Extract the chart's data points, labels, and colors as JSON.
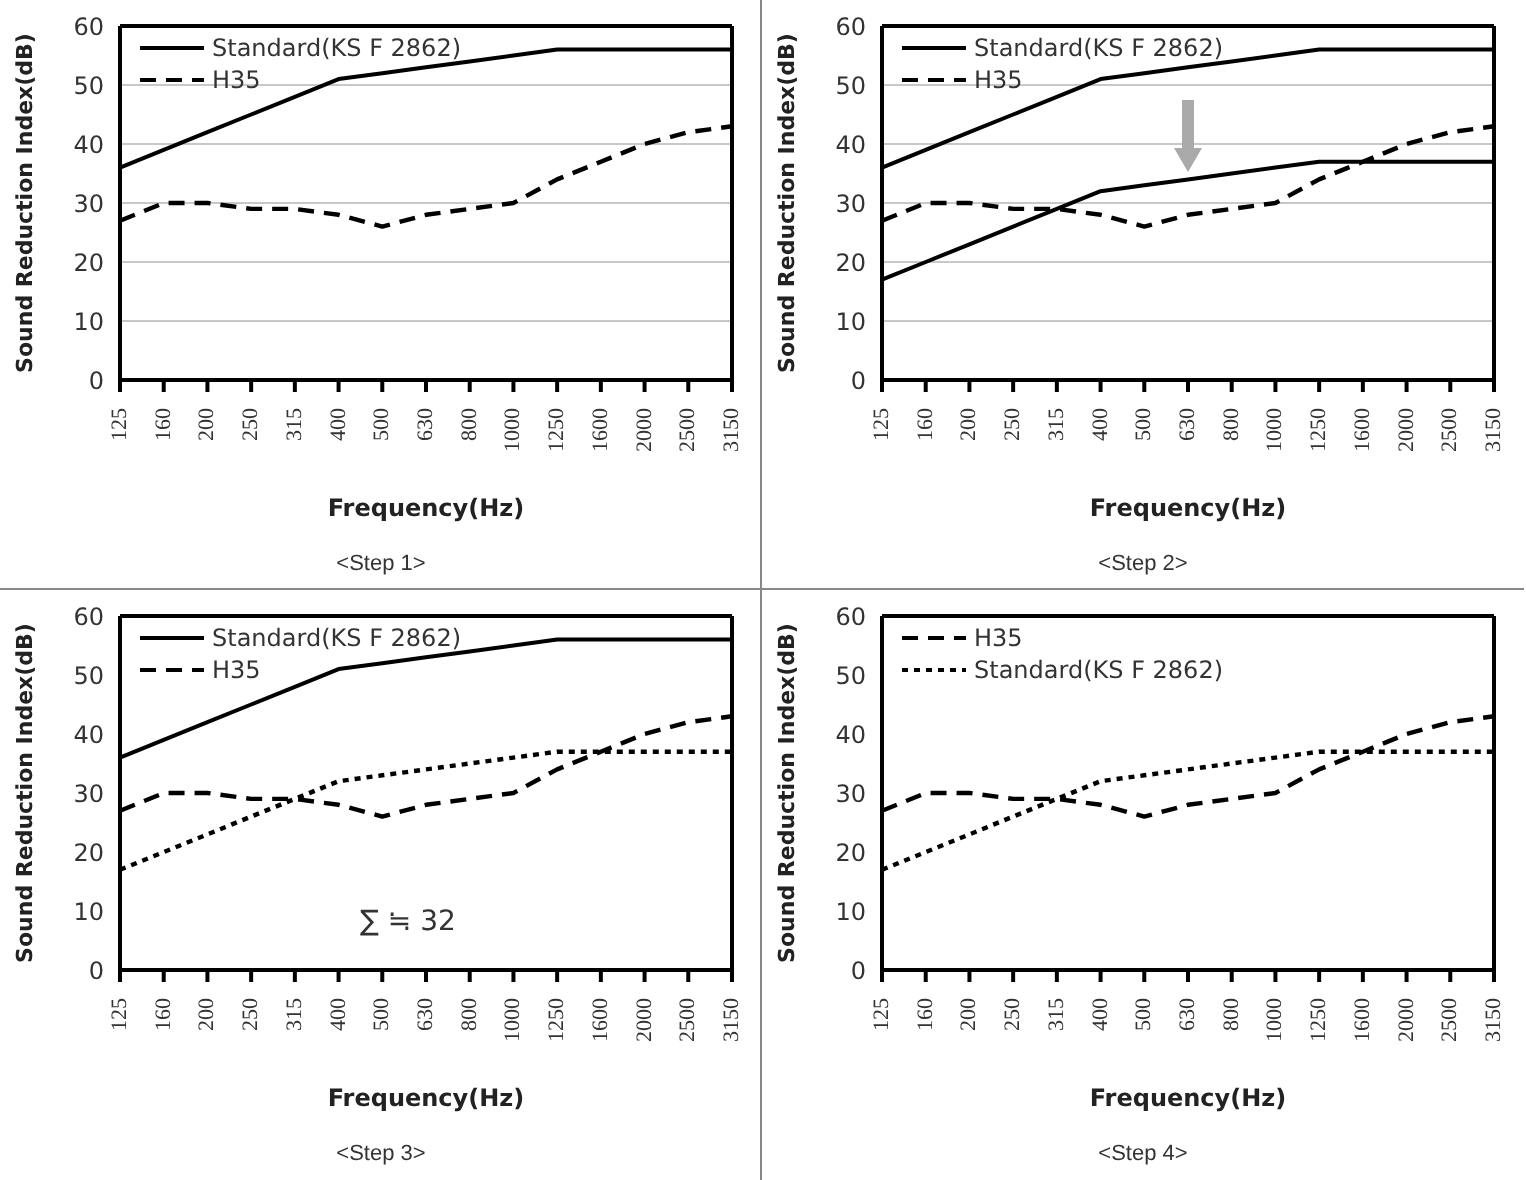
{
  "chart_data": [
    {
      "type": "line",
      "title": "<Step 1>",
      "xlabel": "Frequency(Hz)",
      "ylabel": "Sound Reduction Index(dB)",
      "categories": [
        "125",
        "160",
        "200",
        "250",
        "315",
        "400",
        "500",
        "630",
        "800",
        "1000",
        "1250",
        "1600",
        "2000",
        "2500",
        "3150"
      ],
      "ylim": [
        0,
        60
      ],
      "yticks": [
        0,
        10,
        20,
        30,
        40,
        50,
        60
      ],
      "grid": "y",
      "legend": "top left",
      "marker": "none",
      "series": [
        {
          "name": "Standard(KS F 2862)",
          "color": "#000000",
          "line_style": "solid",
          "values": [
            36,
            39,
            42,
            45,
            48,
            51,
            52,
            53,
            54,
            55,
            56,
            56,
            56,
            56,
            56
          ]
        },
        {
          "name": "H35",
          "color": "#000000",
          "line_style": "dashed",
          "values": [
            27,
            30,
            30,
            29,
            29,
            28,
            26,
            28,
            29,
            30,
            34,
            37,
            40,
            42,
            43
          ]
        }
      ]
    },
    {
      "type": "line",
      "title": "<Step 2>",
      "xlabel": "Frequency(Hz)",
      "ylabel": "Sound Reduction Index(dB)",
      "categories": [
        "125",
        "160",
        "200",
        "250",
        "315",
        "400",
        "500",
        "630",
        "800",
        "1000",
        "1250",
        "1600",
        "2000",
        "2500",
        "3150"
      ],
      "ylim": [
        0,
        60
      ],
      "yticks": [
        0,
        10,
        20,
        30,
        40,
        50,
        60
      ],
      "grid": "y",
      "legend": "top left",
      "marker": "none",
      "series": [
        {
          "name": "Standard(KS F 2862)",
          "color": "#000000",
          "line_style": "solid",
          "values": [
            36,
            39,
            42,
            45,
            48,
            51,
            52,
            53,
            54,
            55,
            56,
            56,
            56,
            56,
            56
          ]
        },
        {
          "name": "H35",
          "color": "#000000",
          "line_style": "dashed",
          "values": [
            27,
            30,
            30,
            29,
            29,
            28,
            26,
            28,
            29,
            30,
            34,
            37,
            40,
            42,
            43
          ]
        },
        {
          "color": "#000000",
          "line_style": "solid",
          "values": [
            17,
            20,
            23,
            26,
            29,
            32,
            33,
            34,
            35,
            36,
            37,
            37,
            37,
            37,
            37
          ]
        }
      ]
    },
    {
      "type": "line",
      "title": "<Step 3>",
      "xlabel": "Frequency(Hz)",
      "ylabel": "Sound Reduction Index(dB)",
      "categories": [
        "125",
        "160",
        "200",
        "250",
        "315",
        "400",
        "500",
        "630",
        "800",
        "1000",
        "1250",
        "1600",
        "2000",
        "2500",
        "3150"
      ],
      "ylim": [
        0,
        60
      ],
      "yticks": [
        0,
        10,
        20,
        30,
        40,
        50,
        60
      ],
      "grid": false,
      "legend": "top left",
      "marker": "none",
      "annotations": [
        "∑ ≒ 32"
      ],
      "series": [
        {
          "name": "Standard(KS F 2862)",
          "color": "#000000",
          "line_style": "solid",
          "values": [
            36,
            39,
            42,
            45,
            48,
            51,
            52,
            53,
            54,
            55,
            56,
            56,
            56,
            56,
            56
          ]
        },
        {
          "name": "H35",
          "color": "#000000",
          "line_style": "dashed",
          "values": [
            27,
            30,
            30,
            29,
            29,
            28,
            26,
            28,
            29,
            30,
            34,
            37,
            40,
            42,
            43
          ]
        },
        {
          "color": "#000000",
          "line_style": "dotted",
          "values": [
            17,
            20,
            23,
            26,
            29,
            32,
            33,
            34,
            35,
            36,
            37,
            37,
            37,
            37,
            37
          ]
        }
      ]
    },
    {
      "type": "line",
      "title": "<Step 4>",
      "xlabel": "Frequency(Hz)",
      "ylabel": "Sound Reduction Index(dB)",
      "categories": [
        "125",
        "160",
        "200",
        "250",
        "315",
        "400",
        "500",
        "630",
        "800",
        "1000",
        "1250",
        "1600",
        "2000",
        "2500",
        "3150"
      ],
      "ylim": [
        0,
        60
      ],
      "yticks": [
        0,
        10,
        20,
        30,
        40,
        50,
        60
      ],
      "grid": false,
      "legend": "top left",
      "marker": "none",
      "series": [
        {
          "name": "H35",
          "color": "#000000",
          "line_style": "dashed",
          "values": [
            27,
            30,
            30,
            29,
            29,
            28,
            26,
            28,
            29,
            30,
            34,
            37,
            40,
            42,
            43
          ]
        },
        {
          "name": "Standard(KS F 2862)",
          "color": "#000000",
          "line_style": "dotted",
          "values": [
            17,
            20,
            23,
            26,
            29,
            32,
            33,
            34,
            35,
            36,
            37,
            37,
            37,
            37,
            37
          ]
        }
      ]
    }
  ]
}
